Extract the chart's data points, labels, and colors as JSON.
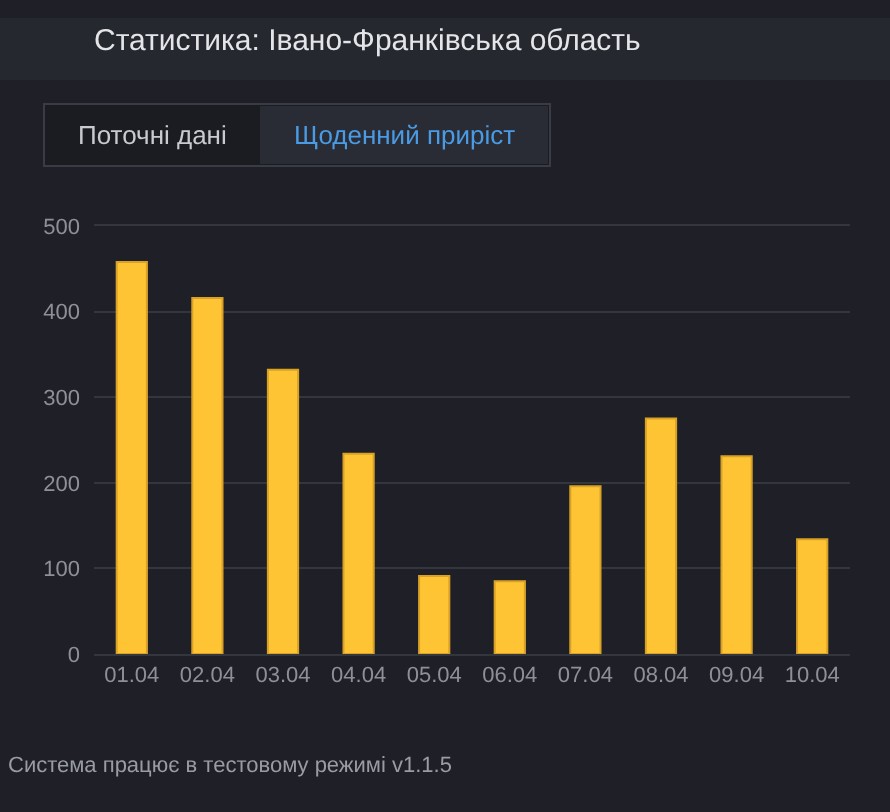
{
  "chart_data": {
    "type": "bar",
    "title": "Статистика: Івано-Франківська область",
    "categories": [
      "01.04",
      "02.04",
      "03.04",
      "04.04",
      "05.04",
      "06.04",
      "07.04",
      "08.04",
      "09.04",
      "10.04"
    ],
    "values": [
      458,
      416,
      332,
      234,
      91,
      85,
      196,
      275,
      231,
      134
    ],
    "color": "#fec433",
    "ylim": [
      0,
      500
    ],
    "yticks": [
      0,
      100,
      200,
      300,
      400,
      500
    ],
    "grid": "y",
    "annotations": [
      "Поточні дані",
      "Щоденний приріст",
      "Система працює в тестовому режимі v1.1.5"
    ]
  }
}
